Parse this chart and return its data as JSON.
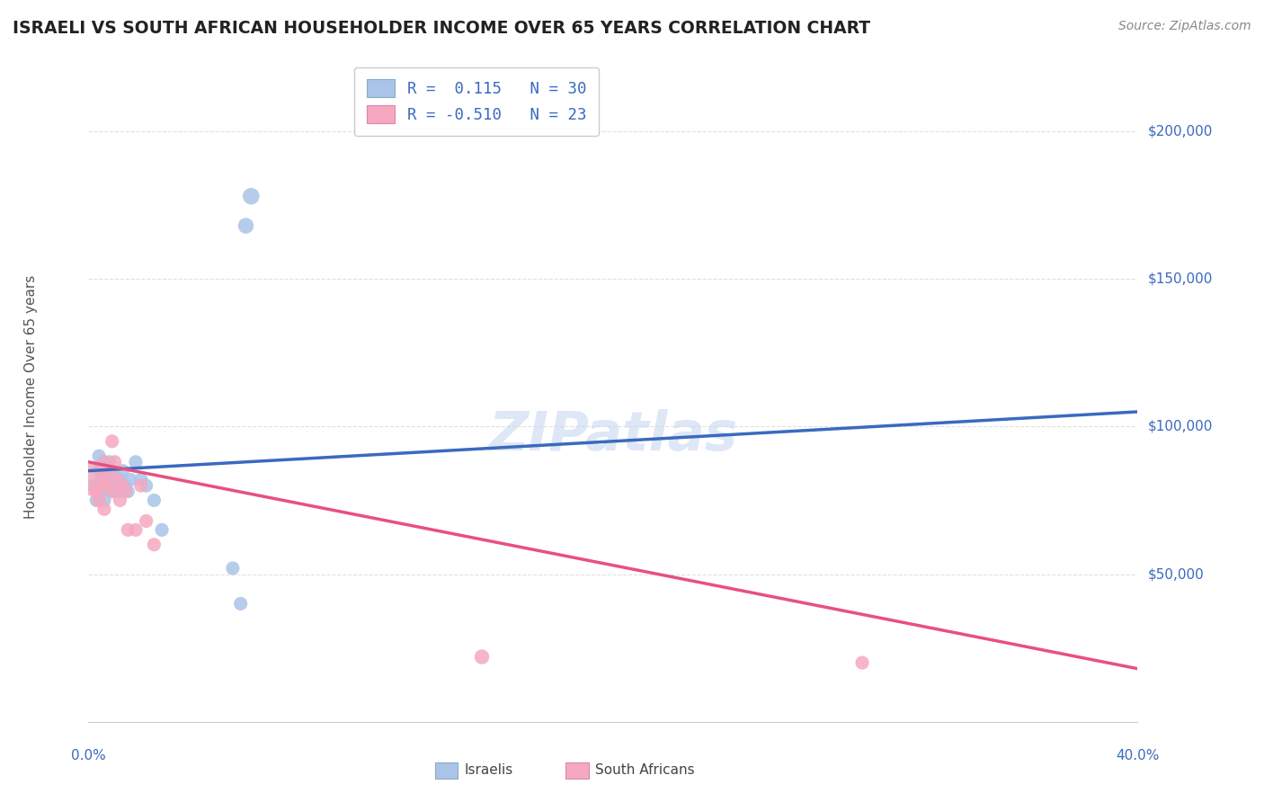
{
  "title": "ISRAELI VS SOUTH AFRICAN HOUSEHOLDER INCOME OVER 65 YEARS CORRELATION CHART",
  "source": "Source: ZipAtlas.com",
  "ylabel": "Householder Income Over 65 years",
  "background_color": "#ffffff",
  "grid_color": "#e0e0e0",
  "israeli_color": "#aac4e8",
  "sa_color": "#f5a8c0",
  "israeli_line_color": "#3a6abf",
  "sa_line_color": "#e85080",
  "israeli_line_dash_color": "#8aaadd",
  "title_color": "#222222",
  "axis_label_color": "#3a6abf",
  "right_label_color": "#3a6abf",
  "source_color": "#888888",
  "watermark_color": "#c8d8f0",
  "legend_label1": "R =  0.115   N = 30",
  "legend_label2": "R = -0.510   N = 23",
  "bottom_label1": "Israelis",
  "bottom_label2": "South Africans",
  "xlim": [
    0.0,
    0.4
  ],
  "ylim": [
    0,
    220000
  ],
  "israeli_x": [
    0.002,
    0.003,
    0.004,
    0.004,
    0.005,
    0.005,
    0.006,
    0.006,
    0.007,
    0.007,
    0.008,
    0.008,
    0.009,
    0.009,
    0.01,
    0.011,
    0.012,
    0.013,
    0.014,
    0.015,
    0.016,
    0.018,
    0.02,
    0.022,
    0.025,
    0.028,
    0.055,
    0.058,
    0.06,
    0.062
  ],
  "israeli_y": [
    80000,
    75000,
    85000,
    90000,
    78000,
    82000,
    75000,
    88000,
    80000,
    85000,
    82000,
    88000,
    78000,
    85000,
    80000,
    78000,
    82000,
    85000,
    80000,
    78000,
    82000,
    88000,
    82000,
    80000,
    75000,
    65000,
    52000,
    40000,
    168000,
    178000
  ],
  "israeli_sizes": [
    120,
    120,
    120,
    120,
    120,
    120,
    120,
    120,
    120,
    120,
    120,
    120,
    120,
    120,
    120,
    120,
    120,
    120,
    120,
    120,
    120,
    120,
    120,
    120,
    120,
    120,
    120,
    120,
    160,
    180
  ],
  "sa_x": [
    0.002,
    0.003,
    0.004,
    0.005,
    0.005,
    0.006,
    0.006,
    0.007,
    0.008,
    0.009,
    0.009,
    0.01,
    0.011,
    0.012,
    0.013,
    0.014,
    0.015,
    0.018,
    0.02,
    0.022,
    0.025,
    0.15,
    0.295
  ],
  "sa_y": [
    82000,
    78000,
    75000,
    80000,
    85000,
    72000,
    88000,
    80000,
    85000,
    95000,
    78000,
    88000,
    82000,
    75000,
    80000,
    78000,
    65000,
    65000,
    80000,
    68000,
    60000,
    22000,
    20000
  ],
  "sa_sizes": [
    700,
    120,
    120,
    120,
    120,
    120,
    120,
    120,
    120,
    120,
    120,
    120,
    120,
    120,
    120,
    120,
    120,
    120,
    120,
    120,
    120,
    140,
    120
  ]
}
